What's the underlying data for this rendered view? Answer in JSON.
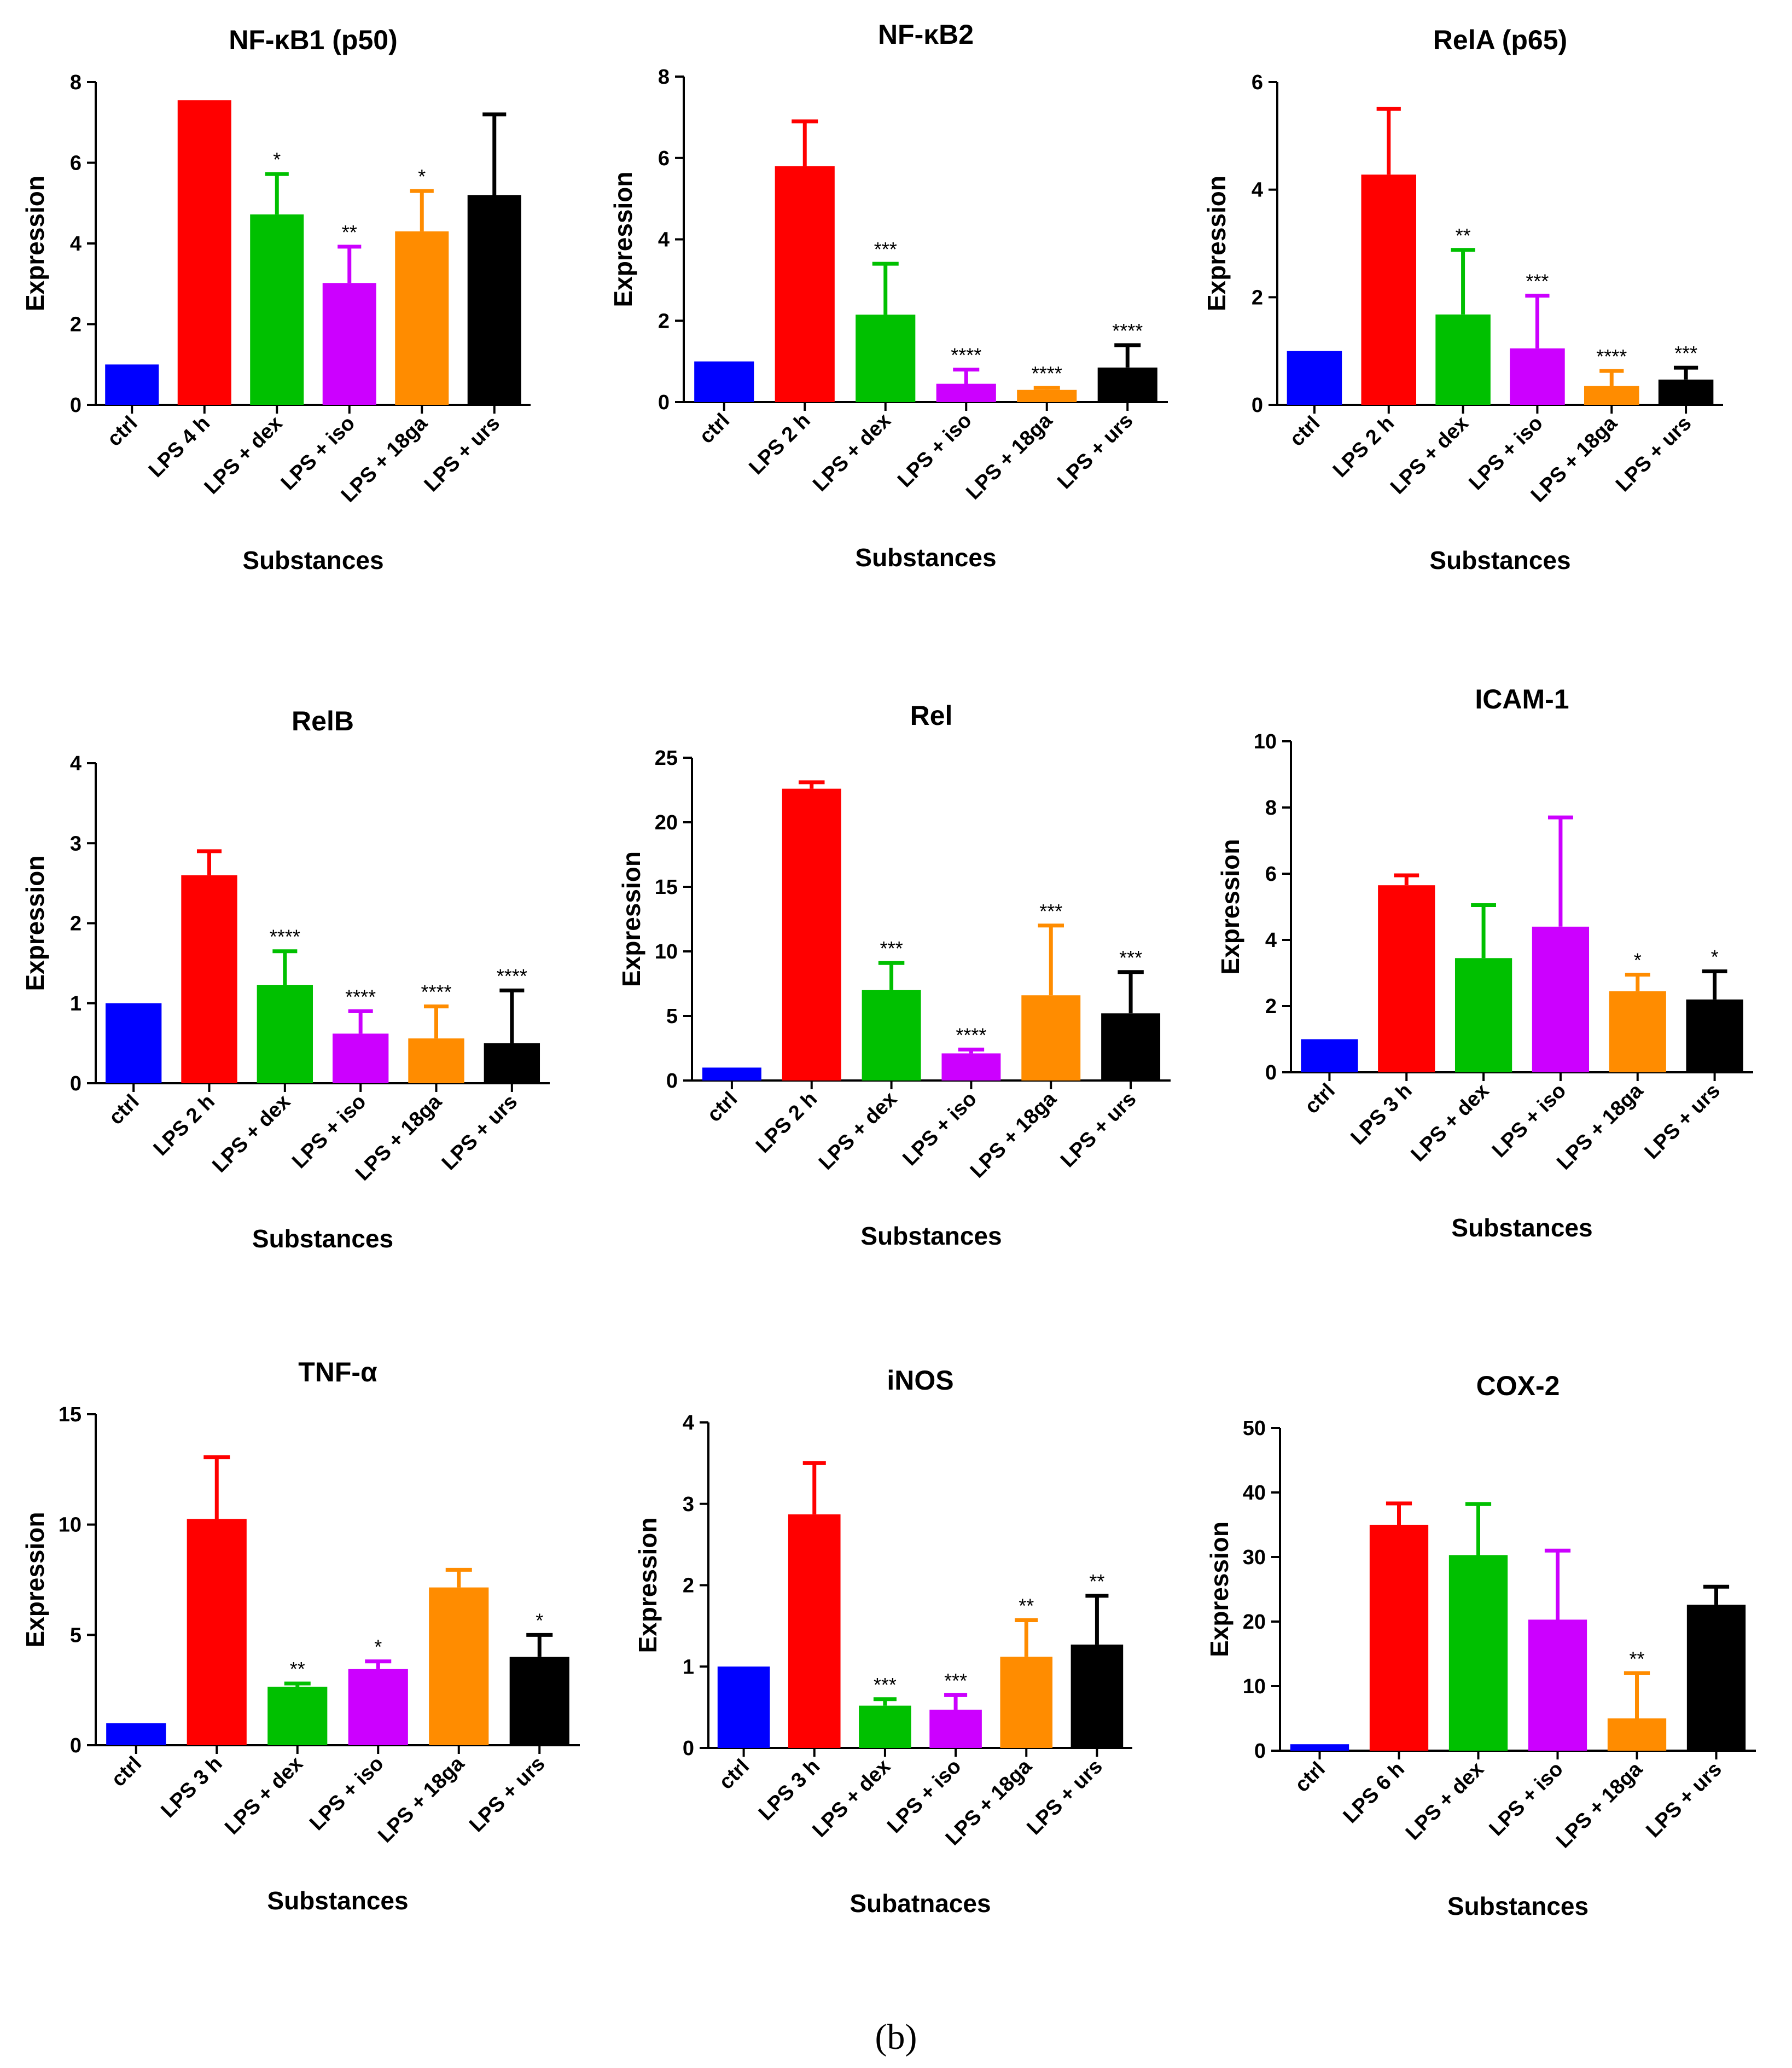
{
  "figure": {
    "label": "(b)"
  },
  "colors": [
    "#0000ff",
    "#ff0000",
    "#00c000",
    "#cc00ff",
    "#ff8c00",
    "#000000"
  ],
  "chart_data": [
    {
      "type": "bar",
      "title": "NF-κB1 (p50)",
      "xlabel": "Substances",
      "ylabel": "Expression",
      "categories": [
        "ctrl",
        "LPS 4 h",
        "LPS + dex",
        "LPS + iso",
        "LPS + 18ga",
        "LPS + urs"
      ],
      "values": [
        1.0,
        7.55,
        4.72,
        3.02,
        4.3,
        5.2
      ],
      "errors": [
        0,
        0,
        1.0,
        0.9,
        1.0,
        2.0
      ],
      "significance": [
        "",
        "",
        "*",
        "**",
        "*",
        ""
      ],
      "ylim": [
        0,
        8
      ],
      "yticks": [
        0,
        2,
        4,
        6,
        8
      ]
    },
    {
      "type": "bar",
      "title": "NF-κB2",
      "xlabel": "Substances",
      "ylabel": "Expression",
      "categories": [
        "ctrl",
        "LPS 2 h",
        "LPS + dex",
        "LPS + iso",
        "LPS + 18ga",
        "LPS + urs"
      ],
      "values": [
        1.0,
        5.8,
        2.15,
        0.45,
        0.3,
        0.85
      ],
      "errors": [
        0,
        1.1,
        1.25,
        0.35,
        0.05,
        0.55
      ],
      "significance": [
        "",
        "",
        "***",
        "****",
        "****",
        "****"
      ],
      "ylim": [
        0,
        8
      ],
      "yticks": [
        0,
        2,
        4,
        6,
        8
      ]
    },
    {
      "type": "bar",
      "title": "RelA (p65)",
      "xlabel": "Substances",
      "ylabel": "Expression",
      "categories": [
        "ctrl",
        "LPS 2 h",
        "LPS + dex",
        "LPS + iso",
        "LPS + 18ga",
        "LPS + urs"
      ],
      "values": [
        1.0,
        4.28,
        1.68,
        1.05,
        0.35,
        0.47
      ],
      "errors": [
        0,
        1.22,
        1.2,
        0.98,
        0.28,
        0.22
      ],
      "significance": [
        "",
        "",
        "**",
        "***",
        "****",
        "***"
      ],
      "ylim": [
        0,
        6
      ],
      "yticks": [
        0,
        2,
        4,
        6
      ]
    },
    {
      "type": "bar",
      "title": "RelB",
      "xlabel": "Substances",
      "ylabel": "Expression",
      "categories": [
        "ctrl",
        "LPS 2 h",
        "LPS + dex",
        "LPS + iso",
        "LPS + 18ga",
        "LPS + urs"
      ],
      "values": [
        1.0,
        2.6,
        1.23,
        0.62,
        0.56,
        0.5
      ],
      "errors": [
        0,
        0.3,
        0.42,
        0.28,
        0.4,
        0.66
      ],
      "significance": [
        "",
        "",
        "****",
        "****",
        "****",
        "****"
      ],
      "ylim": [
        0,
        4
      ],
      "yticks": [
        0,
        1,
        2,
        3,
        4
      ]
    },
    {
      "type": "bar",
      "title": "Rel",
      "xlabel": "Substances",
      "ylabel": "Expression",
      "categories": [
        "ctrl",
        "LPS 2 h",
        "LPS + dex",
        "LPS + iso",
        "LPS + 18ga",
        "LPS + urs"
      ],
      "values": [
        1.0,
        22.6,
        7.0,
        2.1,
        6.6,
        5.2
      ],
      "errors": [
        0,
        0.5,
        2.1,
        0.3,
        5.4,
        3.2
      ],
      "significance": [
        "",
        "",
        "***",
        "****",
        "***",
        "***"
      ],
      "ylim": [
        0,
        25
      ],
      "yticks": [
        0,
        5,
        10,
        15,
        20,
        25
      ]
    },
    {
      "type": "bar",
      "title": "ICAM-1",
      "xlabel": "Substances",
      "ylabel": "Expression",
      "categories": [
        "ctrl",
        "LPS 3 h",
        "LPS + dex",
        "LPS + iso",
        "LPS + 18ga",
        "LPS + urs"
      ],
      "values": [
        1.0,
        5.65,
        3.45,
        4.4,
        2.45,
        2.2
      ],
      "errors": [
        0,
        0.3,
        1.6,
        3.3,
        0.5,
        0.85
      ],
      "significance": [
        "",
        "",
        "",
        "",
        "*",
        "*"
      ],
      "ylim": [
        0,
        10
      ],
      "yticks": [
        0,
        2,
        4,
        6,
        8,
        10
      ]
    },
    {
      "type": "bar",
      "title": "TNF-α",
      "xlabel": "Substances",
      "ylabel": "Expression",
      "categories": [
        "ctrl",
        "LPS 3 h",
        "LPS + dex",
        "LPS + iso",
        "LPS + 18ga",
        "LPS + urs"
      ],
      "values": [
        1.0,
        10.25,
        2.65,
        3.45,
        7.15,
        4.0
      ],
      "errors": [
        0,
        2.8,
        0.15,
        0.35,
        0.8,
        1.0
      ],
      "significance": [
        "",
        "",
        "**",
        "*",
        "",
        "*"
      ],
      "ylim": [
        0,
        15
      ],
      "yticks": [
        0,
        5,
        10,
        15
      ]
    },
    {
      "type": "bar",
      "title": "iNOS",
      "xlabel": "Subatnaces",
      "ylabel": "Expression",
      "categories": [
        "ctrl",
        "LPS 3 h",
        "LPS + dex",
        "LPS + iso",
        "LPS + 18ga",
        "LPS + urs"
      ],
      "values": [
        1.0,
        2.87,
        0.52,
        0.47,
        1.12,
        1.27
      ],
      "errors": [
        0,
        0.63,
        0.08,
        0.18,
        0.45,
        0.6
      ],
      "significance": [
        "",
        "",
        "***",
        "***",
        "**",
        "**"
      ],
      "ylim": [
        0,
        4
      ],
      "yticks": [
        0,
        1,
        2,
        3,
        4
      ]
    },
    {
      "type": "bar",
      "title": "COX-2",
      "xlabel": "Substances",
      "ylabel": "Expression",
      "categories": [
        "ctrl",
        "LPS 6 h",
        "LPS + dex",
        "LPS + iso",
        "LPS + 18ga",
        "LPS + urs"
      ],
      "values": [
        1.0,
        35.0,
        30.3,
        20.3,
        5.0,
        22.6
      ],
      "errors": [
        0,
        3.3,
        7.9,
        10.7,
        7.0,
        2.8
      ],
      "significance": [
        "",
        "",
        "",
        "",
        "**",
        ""
      ],
      "ylim": [
        0,
        50
      ],
      "yticks": [
        0,
        10,
        20,
        30,
        40,
        50
      ]
    }
  ]
}
